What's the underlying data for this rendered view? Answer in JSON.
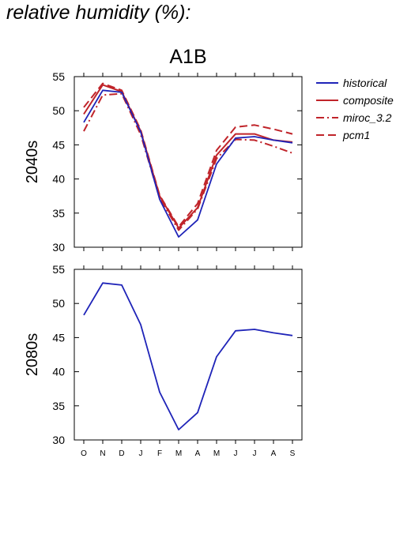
{
  "page": {
    "title": "relative humidity (%):"
  },
  "colors": {
    "historical": "#1f24b8",
    "composite": "#c0242a",
    "miroc_3.2": "#c0242a",
    "pcm1": "#c0242a",
    "axis": "#000000"
  },
  "chart_data": [
    {
      "type": "line",
      "title": "A1B",
      "ylabel": "2040s",
      "categories": [
        "O",
        "N",
        "D",
        "J",
        "F",
        "M",
        "A",
        "M",
        "J",
        "J",
        "A",
        "S"
      ],
      "ylim": [
        30,
        55
      ],
      "yticks": [
        30,
        35,
        40,
        45,
        50,
        55
      ],
      "grid": false,
      "legend": "right",
      "series": [
        {
          "name": "historical",
          "style": "solid",
          "values": [
            48.3,
            53.0,
            52.7,
            46.9,
            37.0,
            31.5,
            34.0,
            42.2,
            46.0,
            46.2,
            45.7,
            45.3
          ]
        },
        {
          "name": "composite",
          "style": "solid",
          "values": [
            49.5,
            53.8,
            52.8,
            47.0,
            37.5,
            32.8,
            35.8,
            43.5,
            46.6,
            46.6,
            45.7,
            45.4
          ]
        },
        {
          "name": "miroc_3.2",
          "style": "dashdot",
          "values": [
            47.0,
            52.3,
            52.5,
            46.5,
            37.2,
            32.5,
            35.6,
            43.0,
            45.8,
            45.7,
            44.8,
            43.8
          ]
        },
        {
          "name": "pcm1",
          "style": "dashed",
          "values": [
            50.5,
            54.0,
            53.0,
            47.2,
            37.6,
            33.0,
            36.4,
            44.2,
            47.6,
            47.9,
            47.3,
            46.6
          ]
        }
      ]
    },
    {
      "type": "line",
      "title": "",
      "ylabel": "2080s",
      "categories": [
        "O",
        "N",
        "D",
        "J",
        "F",
        "M",
        "A",
        "M",
        "J",
        "J",
        "A",
        "S"
      ],
      "ylim": [
        30,
        55
      ],
      "yticks": [
        30,
        35,
        40,
        45,
        50,
        55
      ],
      "grid": false,
      "series": [
        {
          "name": "historical",
          "style": "solid",
          "values": [
            48.3,
            53.0,
            52.7,
            46.9,
            37.0,
            31.5,
            34.0,
            42.2,
            46.0,
            46.2,
            45.7,
            45.3
          ]
        }
      ]
    }
  ]
}
